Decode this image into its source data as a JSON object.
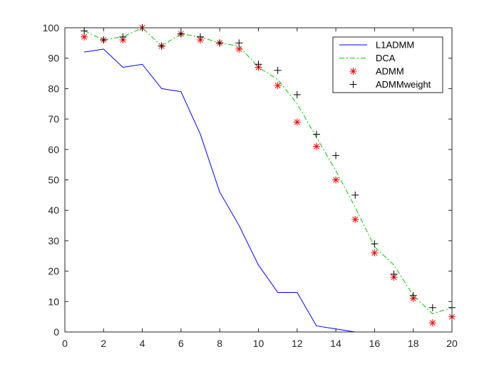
{
  "chart_data": {
    "type": "line",
    "title": "",
    "xlabel": "",
    "ylabel": "",
    "xlim": [
      0,
      20
    ],
    "ylim": [
      0,
      100
    ],
    "xticks": [
      0,
      2,
      4,
      6,
      8,
      10,
      12,
      14,
      16,
      18,
      20
    ],
    "yticks": [
      0,
      10,
      20,
      30,
      40,
      50,
      60,
      70,
      80,
      90,
      100
    ],
    "grid": false,
    "legend_position": "top-right",
    "x": [
      1,
      2,
      3,
      4,
      5,
      6,
      7,
      8,
      9,
      10,
      11,
      12,
      13,
      14,
      15,
      16,
      17,
      18,
      19,
      20
    ],
    "series": [
      {
        "name": "L1ADMM",
        "style": "solid-line",
        "color": "#0000ff",
        "values": [
          92,
          93,
          87,
          88,
          80,
          79,
          65,
          46,
          35,
          22,
          13,
          13,
          2,
          1,
          0,
          0,
          0,
          0,
          0,
          0
        ]
      },
      {
        "name": "DCA",
        "style": "dash-dot-line",
        "color": "#00cc00",
        "values": [
          99,
          96,
          97,
          100,
          94,
          98,
          97,
          95,
          94,
          87,
          83,
          75,
          64,
          53,
          41,
          28,
          22,
          12,
          6,
          8
        ]
      },
      {
        "name": "ADMM",
        "style": "asterisk-marker",
        "color": "#ff0000",
        "values": [
          97,
          96,
          96,
          100,
          94,
          98,
          96,
          95,
          93,
          87,
          81,
          69,
          61,
          50,
          37,
          26,
          18,
          11,
          3,
          5
        ]
      },
      {
        "name": "ADMMweight",
        "style": "plus-marker",
        "color": "#000000",
        "values": [
          99,
          96,
          97,
          100,
          94,
          98,
          97,
          95,
          95,
          88,
          86,
          78,
          65,
          58,
          45,
          29,
          19,
          12,
          8,
          8
        ]
      }
    ]
  }
}
